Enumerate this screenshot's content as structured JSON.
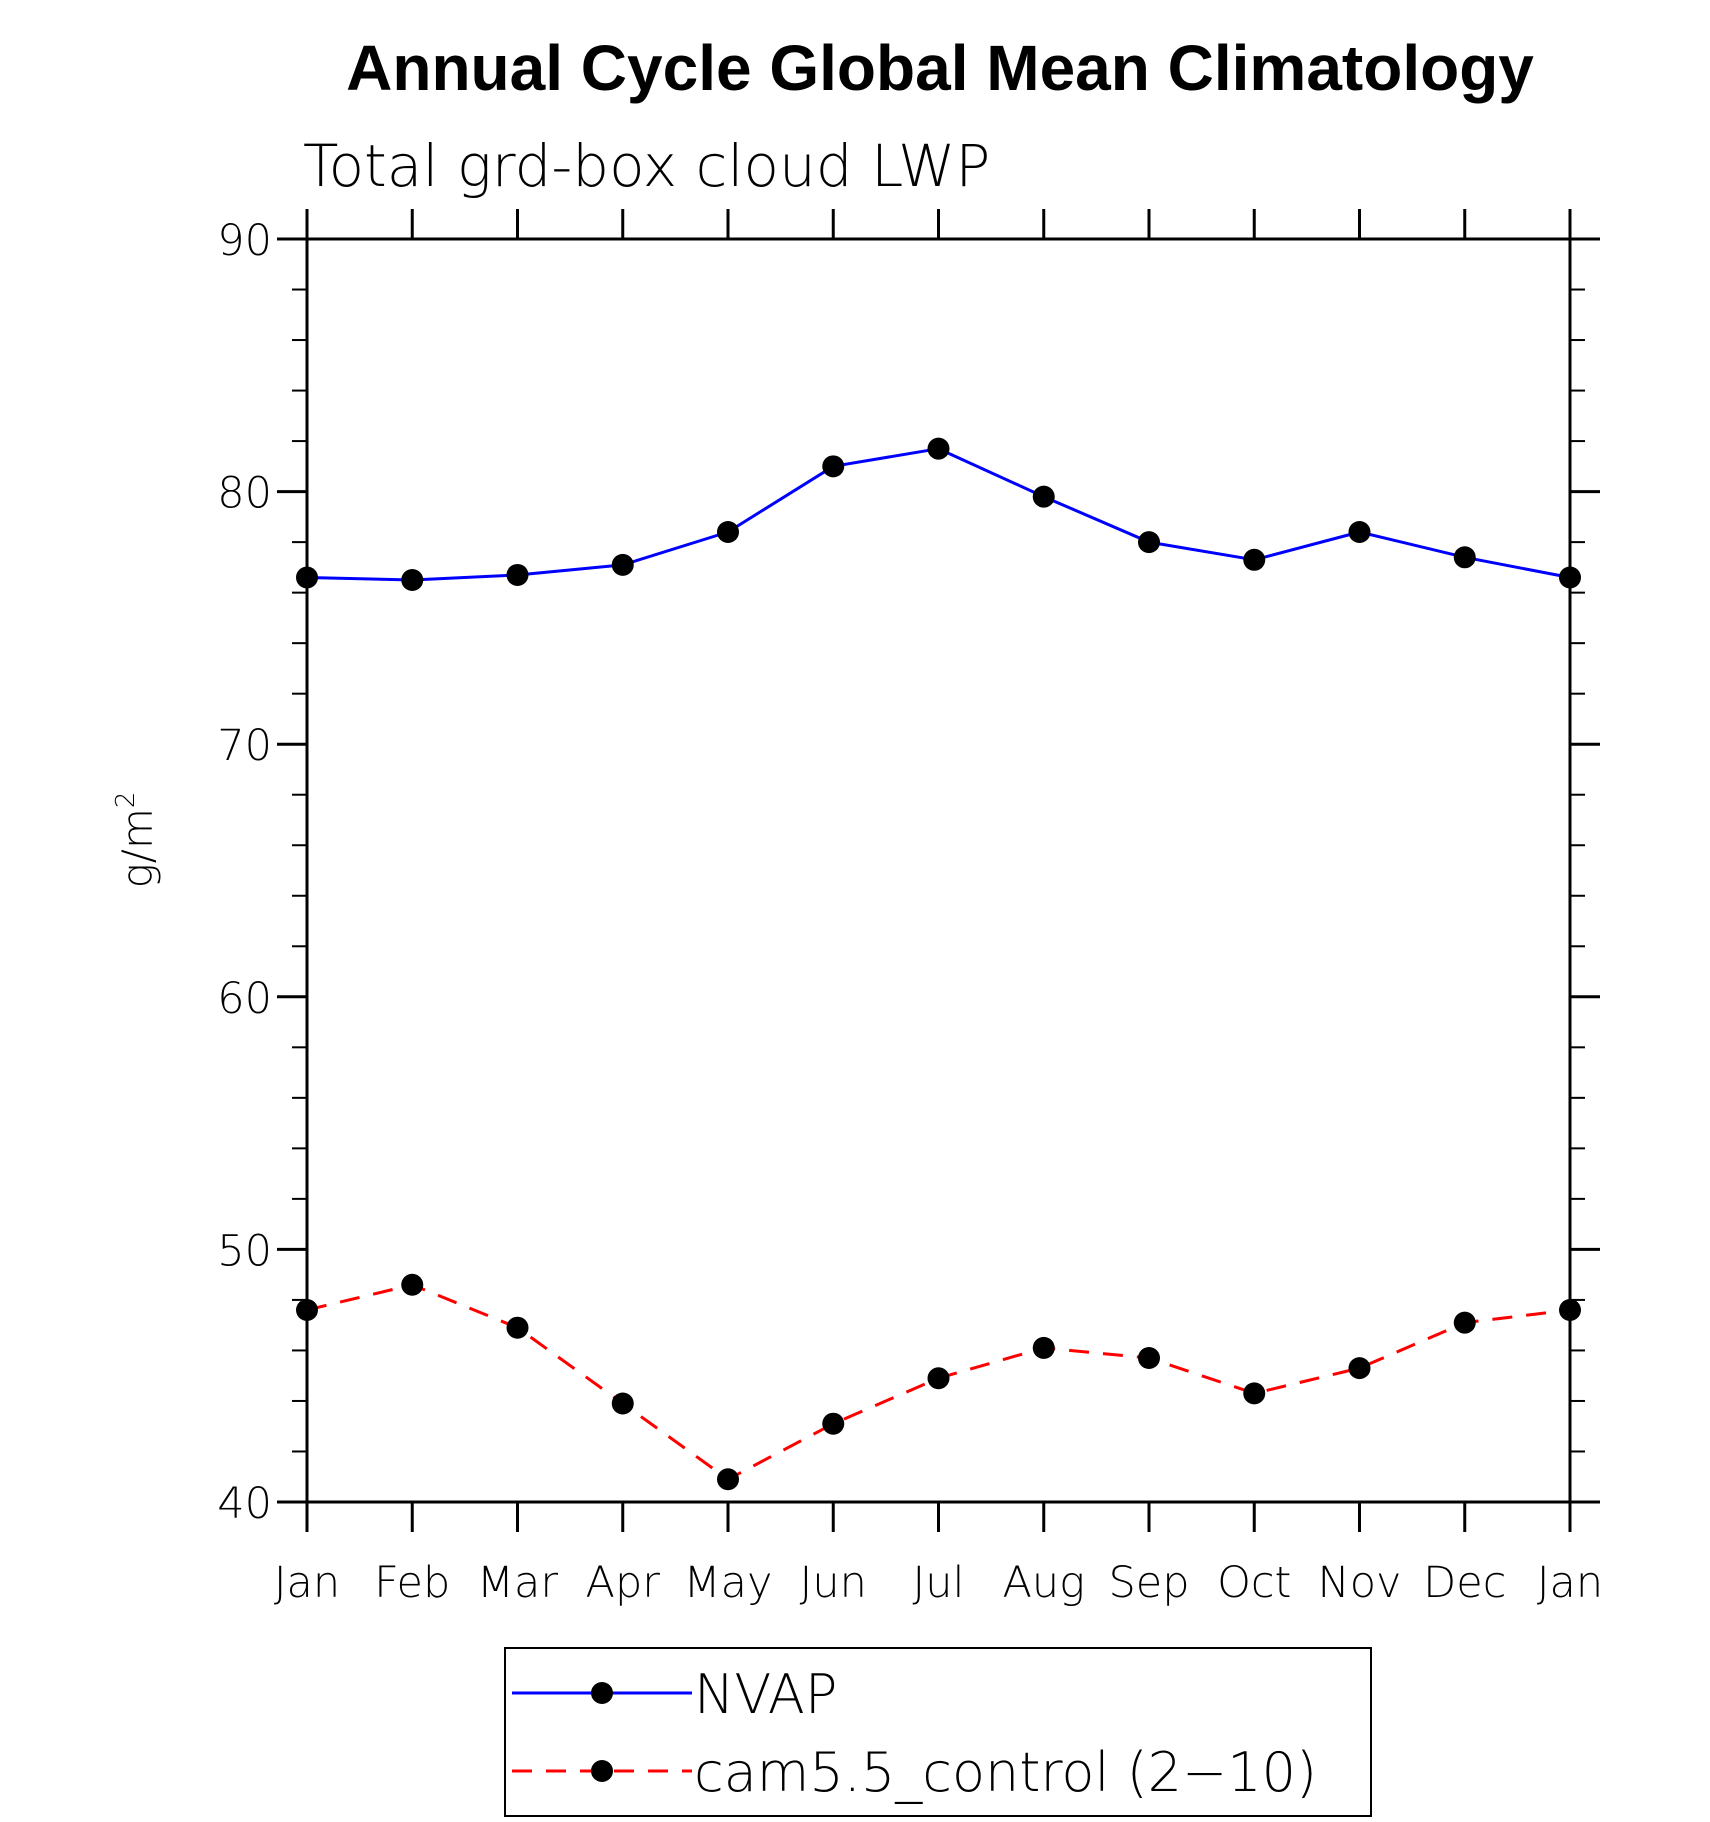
{
  "chart_data": {
    "type": "line",
    "title": "Annual Cycle Global Mean Climatology",
    "subtitle": "Total grd-box cloud LWP",
    "ylabel": "g/m",
    "ylabel_superscript": "2",
    "xlabel": "",
    "categories": [
      "Jan",
      "Feb",
      "Mar",
      "Apr",
      "May",
      "Jun",
      "Jul",
      "Aug",
      "Sep",
      "Oct",
      "Nov",
      "Dec",
      "Jan"
    ],
    "ylim": [
      40,
      90
    ],
    "yticks": [
      40,
      50,
      60,
      70,
      80,
      90
    ],
    "y_minor_step": 2,
    "series": [
      {
        "name": "NVAP",
        "color": "#0000ff",
        "style": "solid",
        "values": [
          76.6,
          76.5,
          76.7,
          77.1,
          78.4,
          81.0,
          81.7,
          79.8,
          78.0,
          77.3,
          78.4,
          77.4,
          76.6
        ]
      },
      {
        "name": "cam5.5_control (2-10)",
        "color": "#ff0000",
        "style": "dashed",
        "values": [
          47.6,
          48.6,
          46.9,
          43.9,
          40.9,
          43.1,
          44.9,
          46.1,
          45.7,
          44.3,
          45.3,
          47.1,
          47.6
        ]
      }
    ],
    "legend": {
      "entries": [
        "NVAP",
        "cam5.5_control (2−10)"
      ],
      "placement": "bottom-center"
    }
  }
}
